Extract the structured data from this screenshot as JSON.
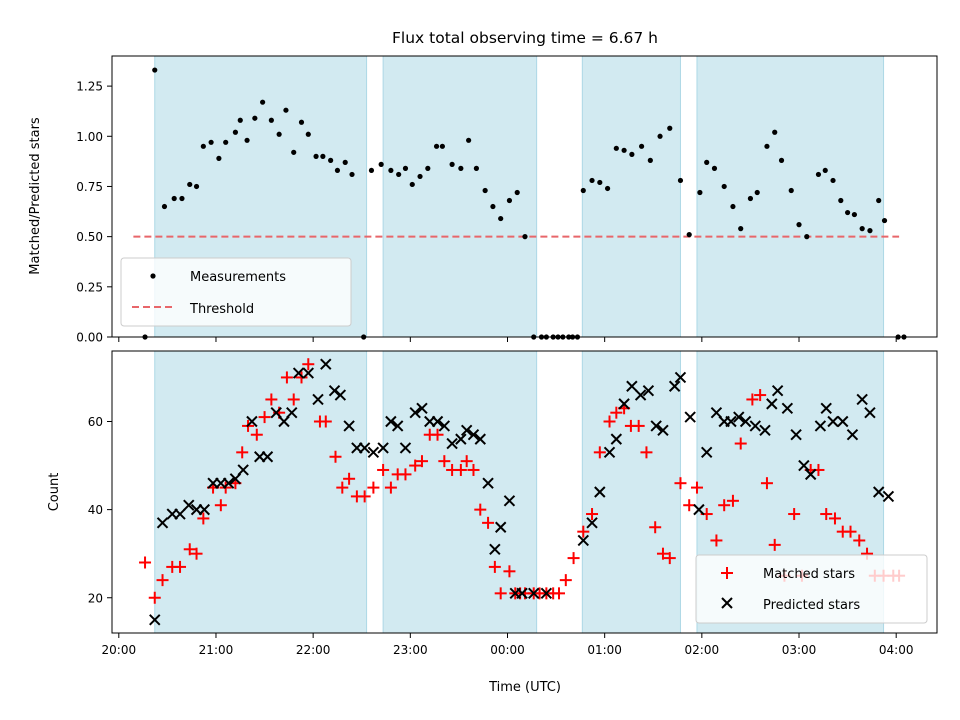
{
  "title": "Flux total observing time = 6.67 h",
  "top_panel": {
    "ylabel": "Matched/Predicted stars",
    "legend": {
      "measurements_label": "Measurements",
      "threshold_label": "Threshold"
    }
  },
  "bottom_panel": {
    "ylabel": "Count",
    "xlabel": "Time (UTC)",
    "legend": {
      "matched_label": "Matched stars",
      "predicted_label": "Predicted stars"
    }
  },
  "colors": {
    "band": "#add8e6",
    "threshold": "#e8666a",
    "matched": "#ff0000",
    "predicted": "#000000",
    "measurements": "#000000"
  },
  "chart_data": [
    {
      "type": "scatter",
      "panel": "top",
      "title": "Flux total observing time = 6.67 h",
      "ylabel": "Matched/Predicted stars",
      "xlim_hours": [
        19.93,
        28.42
      ],
      "ylim": [
        0,
        1.4
      ],
      "x_tick_labels": [
        "20:00",
        "21:00",
        "22:00",
        "23:00",
        "00:00",
        "01:00",
        "02:00",
        "03:00",
        "04:00"
      ],
      "x_tick_values_hours": [
        20,
        21,
        22,
        23,
        24,
        25,
        26,
        27,
        28
      ],
      "y_tick_labels": [
        "0.00",
        "0.25",
        "0.50",
        "0.75",
        "1.00",
        "1.25"
      ],
      "y_tick_values": [
        0,
        0.25,
        0.5,
        0.75,
        1.0,
        1.25
      ],
      "observing_windows_hours": [
        [
          20.37,
          22.55
        ],
        [
          22.72,
          24.3
        ],
        [
          24.77,
          25.78
        ],
        [
          25.95,
          27.87
        ]
      ],
      "threshold": {
        "value": 0.5,
        "x_range_hours": [
          20.15,
          28.03
        ]
      },
      "legend_position": "lower-left",
      "series": [
        {
          "name": "Measurements",
          "x_hours": [
            20.27,
            20.37,
            20.47,
            20.57,
            20.65,
            20.73,
            20.8,
            20.87,
            20.95,
            21.03,
            21.1,
            21.2,
            21.25,
            21.32,
            21.4,
            21.48,
            21.57,
            21.65,
            21.72,
            21.8,
            21.88,
            21.95,
            22.03,
            22.1,
            22.18,
            22.25,
            22.33,
            22.4,
            22.52,
            22.6,
            22.7,
            22.8,
            22.88,
            22.95,
            23.02,
            23.1,
            23.18,
            23.27,
            23.33,
            23.43,
            23.52,
            23.6,
            23.68,
            23.77,
            23.85,
            23.93,
            24.02,
            24.1,
            24.18,
            24.27,
            24.35,
            24.4,
            24.47,
            24.52,
            24.57,
            24.63,
            24.67,
            24.72,
            24.78,
            24.87,
            24.95,
            25.03,
            25.12,
            25.2,
            25.28,
            25.38,
            25.47,
            25.57,
            25.67,
            25.78,
            25.87,
            25.98,
            26.05,
            26.13,
            26.23,
            26.32,
            26.4,
            26.5,
            26.57,
            26.67,
            26.75,
            26.82,
            26.92,
            27.0,
            27.08,
            27.2,
            27.27,
            27.35,
            27.43,
            27.5,
            27.57,
            27.65,
            27.73,
            27.82,
            27.88,
            28.02,
            28.08
          ],
          "y": [
            0,
            1.33,
            0.65,
            0.69,
            0.69,
            0.76,
            0.75,
            0.95,
            0.97,
            0.89,
            0.97,
            1.02,
            1.08,
            0.98,
            1.09,
            1.17,
            1.08,
            1.01,
            1.13,
            0.92,
            1.07,
            1.01,
            0.9,
            0.9,
            0.88,
            0.83,
            0.87,
            0.81,
            0,
            0.83,
            0.86,
            0.83,
            0.81,
            0.84,
            0.76,
            0.8,
            0.84,
            0.95,
            0.95,
            0.86,
            0.84,
            0.98,
            0.84,
            0.73,
            0.65,
            0.59,
            0.68,
            0.72,
            0.5,
            0,
            0,
            0,
            0,
            0,
            0,
            0,
            0,
            0,
            0.73,
            0.78,
            0.77,
            0.74,
            0.94,
            0.93,
            0.91,
            0.95,
            0.88,
            1.0,
            1.04,
            0.78,
            0.51,
            0.72,
            0.87,
            0.84,
            0.75,
            0.65,
            0.54,
            0.69,
            0.72,
            0.95,
            1.02,
            0.88,
            0.73,
            0.56,
            0.5,
            0.81,
            0.83,
            0.78,
            0.68,
            0.62,
            0.61,
            0.54,
            0.53,
            0.68,
            0.58,
            0,
            0
          ]
        }
      ]
    },
    {
      "type": "scatter",
      "panel": "bottom",
      "xlabel": "Time (UTC)",
      "ylabel": "Count",
      "xlim_hours": [
        19.93,
        28.42
      ],
      "ylim": [
        12,
        76
      ],
      "x_tick_labels": [
        "20:00",
        "21:00",
        "22:00",
        "23:00",
        "00:00",
        "01:00",
        "02:00",
        "03:00",
        "04:00"
      ],
      "x_tick_values_hours": [
        20,
        21,
        22,
        23,
        24,
        25,
        26,
        27,
        28
      ],
      "y_tick_labels": [
        "20",
        "40",
        "60"
      ],
      "y_tick_values": [
        20,
        40,
        60
      ],
      "observing_windows_hours": [
        [
          20.37,
          22.55
        ],
        [
          22.72,
          24.3
        ],
        [
          24.77,
          25.78
        ],
        [
          25.95,
          27.87
        ]
      ],
      "legend_position": "lower-right",
      "series": [
        {
          "name": "Matched stars",
          "x_hours": [
            20.27,
            20.37,
            20.45,
            20.55,
            20.63,
            20.73,
            20.8,
            20.87,
            20.97,
            21.05,
            21.1,
            21.2,
            21.27,
            21.33,
            21.42,
            21.5,
            21.57,
            21.65,
            21.73,
            21.8,
            21.88,
            21.95,
            22.07,
            22.13,
            22.23,
            22.3,
            22.37,
            22.45,
            22.53,
            22.62,
            22.72,
            22.8,
            22.87,
            22.95,
            23.05,
            23.12,
            23.2,
            23.28,
            23.35,
            23.43,
            23.52,
            23.58,
            23.65,
            23.72,
            23.8,
            23.87,
            23.93,
            24.02,
            24.08,
            24.13,
            24.18,
            24.27,
            24.33,
            24.4,
            24.47,
            24.53,
            24.6,
            24.68,
            24.78,
            24.87,
            24.95,
            25.05,
            25.12,
            25.2,
            25.27,
            25.35,
            25.43,
            25.52,
            25.6,
            25.67,
            25.78,
            25.87,
            25.95,
            26.05,
            26.15,
            26.23,
            26.32,
            26.4,
            26.52,
            26.6,
            26.67,
            26.75,
            26.85,
            26.95,
            27.03,
            27.12,
            27.2,
            27.28,
            27.37,
            27.45,
            27.53,
            27.62,
            27.7,
            27.78,
            27.87,
            27.97,
            28.03
          ],
          "y": [
            28,
            20,
            24,
            27,
            27,
            31,
            30,
            38,
            45,
            41,
            45,
            46,
            53,
            59,
            57,
            61,
            65,
            62,
            70,
            65,
            70,
            73,
            60,
            60,
            52,
            45,
            47,
            43,
            43,
            45,
            49,
            45,
            48,
            48,
            50,
            51,
            57,
            57,
            51,
            49,
            49,
            51,
            49,
            40,
            37,
            27,
            21,
            26,
            21,
            21,
            21,
            21,
            21,
            21,
            21,
            21,
            24,
            29,
            35,
            39,
            53,
            60,
            62,
            63,
            59,
            59,
            53,
            36,
            30,
            29,
            46,
            41,
            45,
            39,
            33,
            41,
            42,
            55,
            65,
            66,
            46,
            32,
            25,
            39,
            25,
            49,
            49,
            39,
            38,
            35,
            35,
            33,
            30,
            25,
            25,
            25,
            25
          ]
        },
        {
          "name": "Predicted stars",
          "x_hours": [
            20.37,
            20.45,
            20.55,
            20.63,
            20.72,
            20.8,
            20.88,
            20.97,
            21.05,
            21.13,
            21.2,
            21.28,
            21.37,
            21.45,
            21.53,
            21.62,
            21.7,
            21.78,
            21.85,
            21.95,
            22.05,
            22.13,
            22.22,
            22.28,
            22.37,
            22.45,
            22.53,
            22.62,
            22.72,
            22.8,
            22.87,
            22.95,
            23.05,
            23.12,
            23.2,
            23.28,
            23.35,
            23.43,
            23.52,
            23.58,
            23.65,
            23.72,
            23.8,
            23.87,
            23.93,
            24.02,
            24.08,
            24.15,
            24.27,
            24.4,
            24.78,
            24.87,
            24.95,
            25.05,
            25.12,
            25.2,
            25.28,
            25.37,
            25.45,
            25.53,
            25.6,
            25.72,
            25.78,
            25.88,
            25.97,
            26.05,
            26.15,
            26.23,
            26.3,
            26.38,
            26.45,
            26.55,
            26.65,
            26.72,
            26.78,
            26.88,
            26.97,
            27.05,
            27.12,
            27.22,
            27.28,
            27.35,
            27.45,
            27.55,
            27.65,
            27.73,
            27.82,
            27.92
          ],
          "y": [
            15,
            37,
            39,
            39,
            41,
            40,
            40,
            46,
            46,
            46,
            47,
            49,
            60,
            52,
            52,
            62,
            60,
            62,
            71,
            71,
            65,
            73,
            67,
            66,
            59,
            54,
            54,
            53,
            54,
            60,
            59,
            54,
            62,
            63,
            60,
            60,
            59,
            55,
            56,
            58,
            57,
            56,
            46,
            31,
            36,
            42,
            21,
            21,
            21,
            21,
            33,
            37,
            44,
            53,
            56,
            64,
            68,
            66,
            67,
            59,
            58,
            68,
            70,
            61,
            40,
            53,
            62,
            60,
            60,
            61,
            60,
            59,
            58,
            64,
            67,
            63,
            57,
            50,
            48,
            59,
            63,
            60,
            60,
            57,
            65,
            62,
            44,
            43
          ]
        }
      ]
    }
  ]
}
